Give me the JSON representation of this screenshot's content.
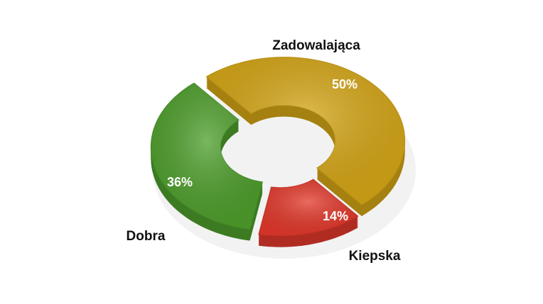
{
  "chart_data": {
    "type": "donut",
    "categories": [
      "Zadowalająca",
      "Kiepska",
      "Dobra"
    ],
    "values": [
      50,
      14,
      36
    ],
    "value_labels": [
      "50%",
      "14%",
      "36%"
    ],
    "colors": [
      "#d4a516",
      "#e2392b",
      "#4e9e2c"
    ]
  }
}
